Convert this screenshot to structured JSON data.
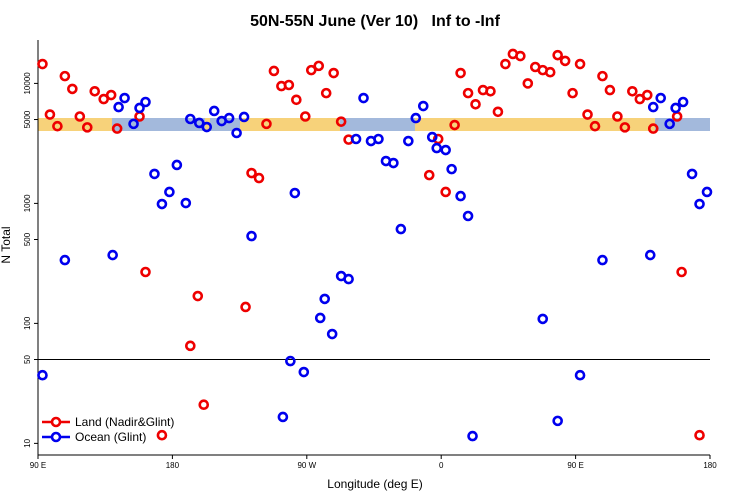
{
  "chart_data": {
    "type": "scatter",
    "title": "50N-55N June (Ver 10)   Inf to -Inf",
    "x_label": "Longitude (deg E)",
    "y_label": "N Total",
    "xlim": [
      90,
      540
    ],
    "xticks": [
      {
        "value": 90,
        "label": "90 E"
      },
      180,
      {
        "value": 270,
        "label": "90 W"
      },
      {
        "value": 360,
        "label": "0"
      },
      {
        "value": 450,
        "label": "90 E"
      },
      {
        "value": 540,
        "label": "180"
      }
    ],
    "ylim": [
      8,
      23000
    ],
    "yticks": [
      10,
      50,
      100,
      500,
      1000,
      5000,
      10000
    ],
    "log_y": true,
    "hlines": [
      50
    ],
    "legend": "bottom-left",
    "series": [
      {
        "name": "Land (Nadir&Glint)",
        "color": "#ee0000",
        "x": [
          93,
          98,
          103,
          108,
          113,
          118,
          123,
          128,
          134,
          139,
          143,
          158,
          162,
          192,
          197,
          201,
          229,
          233,
          238,
          243,
          248,
          253,
          258,
          263,
          269,
          273,
          278,
          283,
          288,
          293,
          298,
          352,
          358,
          363,
          369,
          373,
          378,
          383,
          388,
          393,
          398,
          403,
          408,
          413,
          418,
          423,
          428,
          433,
          438,
          443,
          448,
          453,
          458,
          463,
          468,
          473,
          478,
          483,
          488,
          493,
          498,
          502,
          518,
          521,
          533,
          173
        ],
        "values": [
          14500,
          5500,
          4400,
          11500,
          9000,
          5300,
          4300,
          8600,
          7400,
          8000,
          4200,
          5300,
          268,
          65,
          169,
          21,
          137,
          1790,
          1625,
          4600,
          12700,
          9500,
          9700,
          7300,
          5300,
          12900,
          14000,
          8300,
          12200,
          4800,
          3400,
          1720,
          3440,
          1245,
          4500,
          12200,
          8300,
          6700,
          8800,
          8600,
          5800,
          14500,
          17600,
          16900,
          10000,
          13700,
          12900,
          12400,
          17200,
          15400,
          8300,
          14500,
          5500,
          4400,
          11500,
          8800,
          5300,
          4300,
          8600,
          7400,
          8000,
          4200,
          5300,
          268,
          11.7,
          11.7
        ]
      },
      {
        "name": "Ocean (Glint)",
        "color": "#0000ee",
        "x": [
          93,
          108,
          140,
          144,
          148,
          154,
          158,
          162,
          168,
          173,
          178,
          183,
          189,
          192,
          198,
          203,
          208,
          213,
          218,
          223,
          228,
          233,
          254,
          259,
          262,
          268,
          279,
          282,
          287,
          293,
          298,
          303,
          308,
          313,
          318,
          323,
          328,
          333,
          338,
          343,
          348,
          354,
          357,
          363,
          367,
          373,
          378,
          381,
          428,
          438,
          453,
          468,
          500,
          502,
          507,
          513,
          517,
          522,
          528,
          533,
          538
        ],
        "values": [
          37,
          337,
          371,
          6350,
          7550,
          4600,
          6240,
          7000,
          1760,
          988,
          1245,
          2090,
          1007,
          5050,
          4680,
          4330,
          5890,
          4855,
          5140,
          3860,
          5250,
          534,
          16.6,
          48.5,
          1220,
          39.3,
          111,
          160,
          81.5,
          248,
          234,
          3440,
          7550,
          3310,
          3440,
          2255,
          2170,
          611,
          3310,
          5140,
          6475,
          3570,
          2890,
          2785,
          1930,
          1150,
          785,
          11.5,
          109,
          15.4,
          37,
          337,
          371,
          6350,
          7550,
          4600,
          6240,
          7000,
          1760,
          988,
          1245
        ]
      }
    ]
  }
}
